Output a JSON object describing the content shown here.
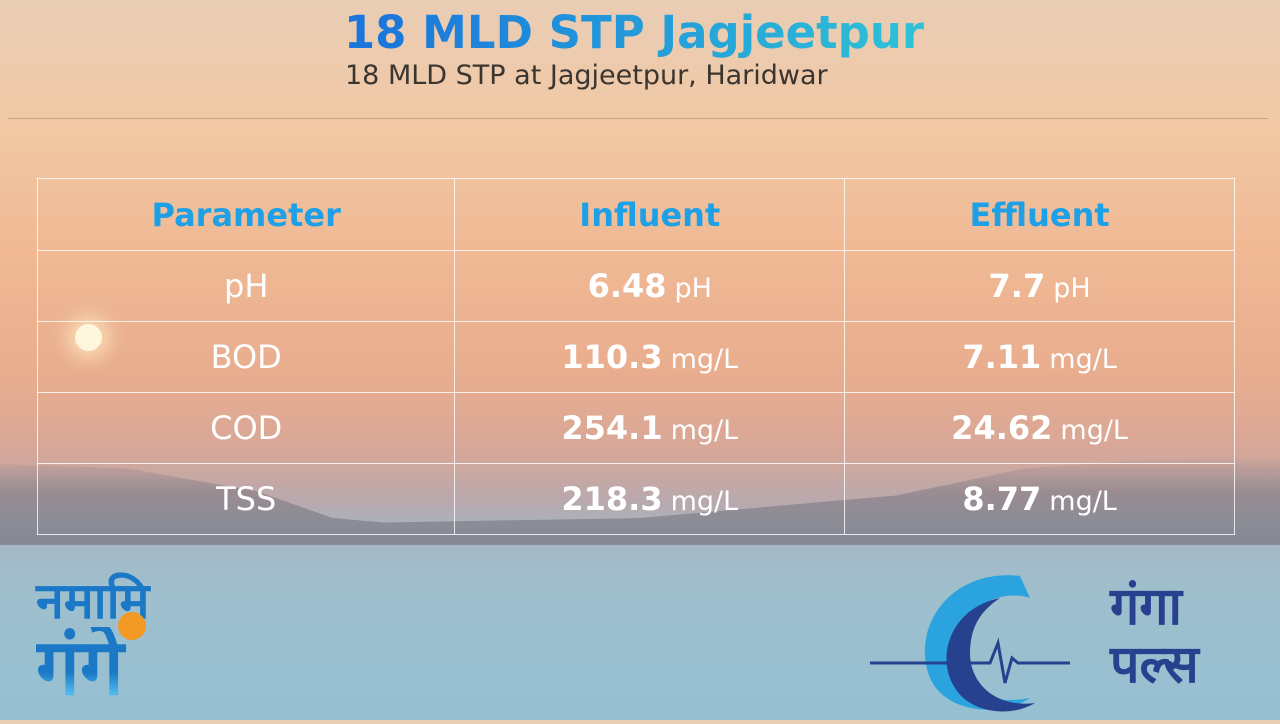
{
  "header": {
    "title": "18 MLD STP Jagjeetpur",
    "subtitle": "18 MLD STP at Jagjeetpur, Haridwar"
  },
  "table": {
    "columns": [
      "Parameter",
      "Influent",
      "Effluent"
    ],
    "rows": [
      {
        "parameter": "pH",
        "influent": "6.48",
        "influent_unit": "pH",
        "effluent": "7.7",
        "effluent_unit": "pH"
      },
      {
        "parameter": "BOD",
        "influent": "110.3",
        "influent_unit": "mg/L",
        "effluent": "7.11",
        "effluent_unit": "mg/L"
      },
      {
        "parameter": "COD",
        "influent": "254.1",
        "influent_unit": "mg/L",
        "effluent": "24.62",
        "effluent_unit": "mg/L"
      },
      {
        "parameter": "TSS",
        "influent": "218.3",
        "influent_unit": "mg/L",
        "effluent": "8.77",
        "effluent_unit": "mg/L"
      }
    ]
  },
  "logos": {
    "namami_gange": {
      "line1": "नमामि",
      "line2": "गंगे"
    },
    "ganga_pulse": {
      "line1": "गंगा",
      "line2": "पल्स"
    }
  },
  "colors": {
    "header_text": "#1ea0e6",
    "title_start": "#1b76dc",
    "title_end": "#2fc7d6",
    "logo_blue": "#1a78c6",
    "logo_navy": "#26418e",
    "accent_orange": "#f39a24"
  }
}
